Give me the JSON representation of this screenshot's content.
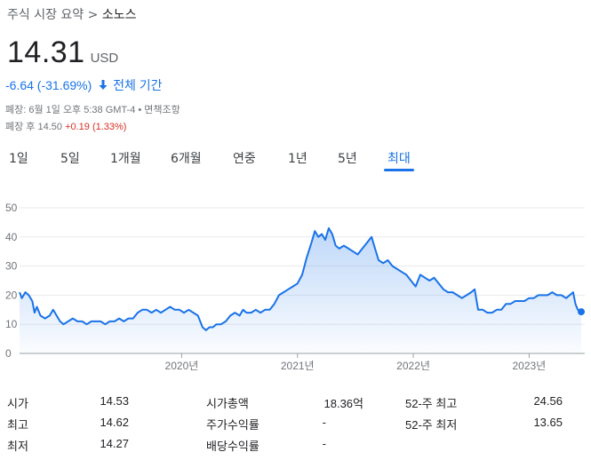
{
  "breadcrumb": {
    "root": "주식 시장 요약",
    "separator": ">",
    "current": "소노스"
  },
  "quote": {
    "price": "14.31",
    "currency": "USD",
    "change": "-6.64 (-31.69%)",
    "range_label": "전체 기간",
    "closed_info": "폐장: 6월 1일 오후 5:38 GMT-4 • 면책조항",
    "after_hours_label": "폐장 후 14.50",
    "after_hours_change": "+0.19 (1.33%)"
  },
  "tabs": [
    {
      "label": "1일",
      "active": false
    },
    {
      "label": "5일",
      "active": false
    },
    {
      "label": "1개월",
      "active": false
    },
    {
      "label": "6개월",
      "active": false
    },
    {
      "label": "연중",
      "active": false
    },
    {
      "label": "1년",
      "active": false
    },
    {
      "label": "5년",
      "active": false
    },
    {
      "label": "최대",
      "active": true
    }
  ],
  "colors": {
    "accent": "#1a73e8",
    "line": "#1a73e8",
    "negative_after": "#d93025"
  },
  "chart_data": {
    "type": "area",
    "y_ticks": [
      "50",
      "40",
      "30",
      "20",
      "10",
      "0"
    ],
    "ylim": [
      0,
      50
    ],
    "x_ticks": [
      {
        "label": "2020년",
        "t": 2020.0
      },
      {
        "label": "2021년",
        "t": 2021.0
      },
      {
        "label": "2022년",
        "t": 2022.0
      },
      {
        "label": "2023년",
        "t": 2023.0
      }
    ],
    "xlim": [
      2018.6,
      2023.45
    ],
    "grid": true,
    "series": [
      {
        "points": [
          [
            2018.6,
            21
          ],
          [
            2018.62,
            19
          ],
          [
            2018.65,
            21
          ],
          [
            2018.68,
            20
          ],
          [
            2018.71,
            18
          ],
          [
            2018.73,
            14
          ],
          [
            2018.75,
            16
          ],
          [
            2018.78,
            13
          ],
          [
            2018.82,
            12
          ],
          [
            2018.86,
            13
          ],
          [
            2018.89,
            15
          ],
          [
            2018.92,
            13
          ],
          [
            2018.95,
            11
          ],
          [
            2018.98,
            10
          ],
          [
            2019.02,
            11
          ],
          [
            2019.06,
            12
          ],
          [
            2019.1,
            11
          ],
          [
            2019.14,
            11
          ],
          [
            2019.18,
            10
          ],
          [
            2019.22,
            11
          ],
          [
            2019.26,
            11
          ],
          [
            2019.3,
            11
          ],
          [
            2019.34,
            10
          ],
          [
            2019.38,
            11
          ],
          [
            2019.42,
            11
          ],
          [
            2019.46,
            12
          ],
          [
            2019.5,
            11
          ],
          [
            2019.54,
            12
          ],
          [
            2019.58,
            12
          ],
          [
            2019.62,
            14
          ],
          [
            2019.66,
            15
          ],
          [
            2019.7,
            15
          ],
          [
            2019.74,
            14
          ],
          [
            2019.78,
            15
          ],
          [
            2019.82,
            14
          ],
          [
            2019.86,
            15
          ],
          [
            2019.9,
            16
          ],
          [
            2019.94,
            15
          ],
          [
            2019.98,
            15
          ],
          [
            2020.02,
            14
          ],
          [
            2020.06,
            15
          ],
          [
            2020.1,
            14
          ],
          [
            2020.14,
            13
          ],
          [
            2020.18,
            9
          ],
          [
            2020.21,
            8
          ],
          [
            2020.24,
            9
          ],
          [
            2020.27,
            9
          ],
          [
            2020.3,
            10
          ],
          [
            2020.34,
            10
          ],
          [
            2020.38,
            11
          ],
          [
            2020.42,
            13
          ],
          [
            2020.46,
            14
          ],
          [
            2020.5,
            13
          ],
          [
            2020.53,
            15
          ],
          [
            2020.56,
            14
          ],
          [
            2020.6,
            14
          ],
          [
            2020.64,
            15
          ],
          [
            2020.68,
            14
          ],
          [
            2020.72,
            15
          ],
          [
            2020.76,
            15
          ],
          [
            2020.8,
            17
          ],
          [
            2020.84,
            20
          ],
          [
            2020.88,
            21
          ],
          [
            2020.92,
            22
          ],
          [
            2020.96,
            23
          ],
          [
            2021.0,
            24
          ],
          [
            2021.04,
            27
          ],
          [
            2021.08,
            33
          ],
          [
            2021.12,
            38
          ],
          [
            2021.15,
            42
          ],
          [
            2021.18,
            40
          ],
          [
            2021.21,
            41
          ],
          [
            2021.24,
            39
          ],
          [
            2021.27,
            43
          ],
          [
            2021.3,
            41
          ],
          [
            2021.33,
            37
          ],
          [
            2021.36,
            36
          ],
          [
            2021.4,
            37
          ],
          [
            2021.44,
            36
          ],
          [
            2021.48,
            35
          ],
          [
            2021.52,
            34
          ],
          [
            2021.56,
            36
          ],
          [
            2021.6,
            38
          ],
          [
            2021.64,
            40
          ],
          [
            2021.67,
            36
          ],
          [
            2021.7,
            32
          ],
          [
            2021.74,
            31
          ],
          [
            2021.78,
            32
          ],
          [
            2021.82,
            30
          ],
          [
            2021.86,
            29
          ],
          [
            2021.9,
            28
          ],
          [
            2021.94,
            27
          ],
          [
            2021.98,
            25
          ],
          [
            2022.02,
            23
          ],
          [
            2022.06,
            27
          ],
          [
            2022.1,
            26
          ],
          [
            2022.14,
            25
          ],
          [
            2022.18,
            26
          ],
          [
            2022.22,
            24
          ],
          [
            2022.26,
            22
          ],
          [
            2022.3,
            21
          ],
          [
            2022.34,
            21
          ],
          [
            2022.38,
            20
          ],
          [
            2022.42,
            19
          ],
          [
            2022.46,
            20
          ],
          [
            2022.5,
            21
          ],
          [
            2022.53,
            22
          ],
          [
            2022.56,
            15
          ],
          [
            2022.6,
            15
          ],
          [
            2022.64,
            14
          ],
          [
            2022.68,
            14
          ],
          [
            2022.72,
            15
          ],
          [
            2022.76,
            15
          ],
          [
            2022.8,
            17
          ],
          [
            2022.84,
            17
          ],
          [
            2022.88,
            18
          ],
          [
            2022.92,
            18
          ],
          [
            2022.96,
            18
          ],
          [
            2023.0,
            19
          ],
          [
            2023.04,
            19
          ],
          [
            2023.08,
            20
          ],
          [
            2023.12,
            20
          ],
          [
            2023.16,
            20
          ],
          [
            2023.2,
            21
          ],
          [
            2023.24,
            20
          ],
          [
            2023.28,
            20
          ],
          [
            2023.32,
            19
          ],
          [
            2023.35,
            20
          ],
          [
            2023.38,
            21
          ],
          [
            2023.4,
            17
          ],
          [
            2023.42,
            15
          ],
          [
            2023.45,
            14.31
          ]
        ]
      }
    ]
  },
  "stats": {
    "col1": [
      {
        "label": "시가",
        "value": "14.53"
      },
      {
        "label": "최고",
        "value": "14.62"
      },
      {
        "label": "최저",
        "value": "14.27"
      }
    ],
    "col2": [
      {
        "label": "시가총액",
        "value": "18.36억"
      },
      {
        "label": "주가수익률",
        "value": "-"
      },
      {
        "label": "배당수익률",
        "value": "-"
      }
    ],
    "col3": [
      {
        "label": "52-주 최고",
        "value": "24.56"
      },
      {
        "label": "52-주 최저",
        "value": "13.65"
      }
    ]
  }
}
